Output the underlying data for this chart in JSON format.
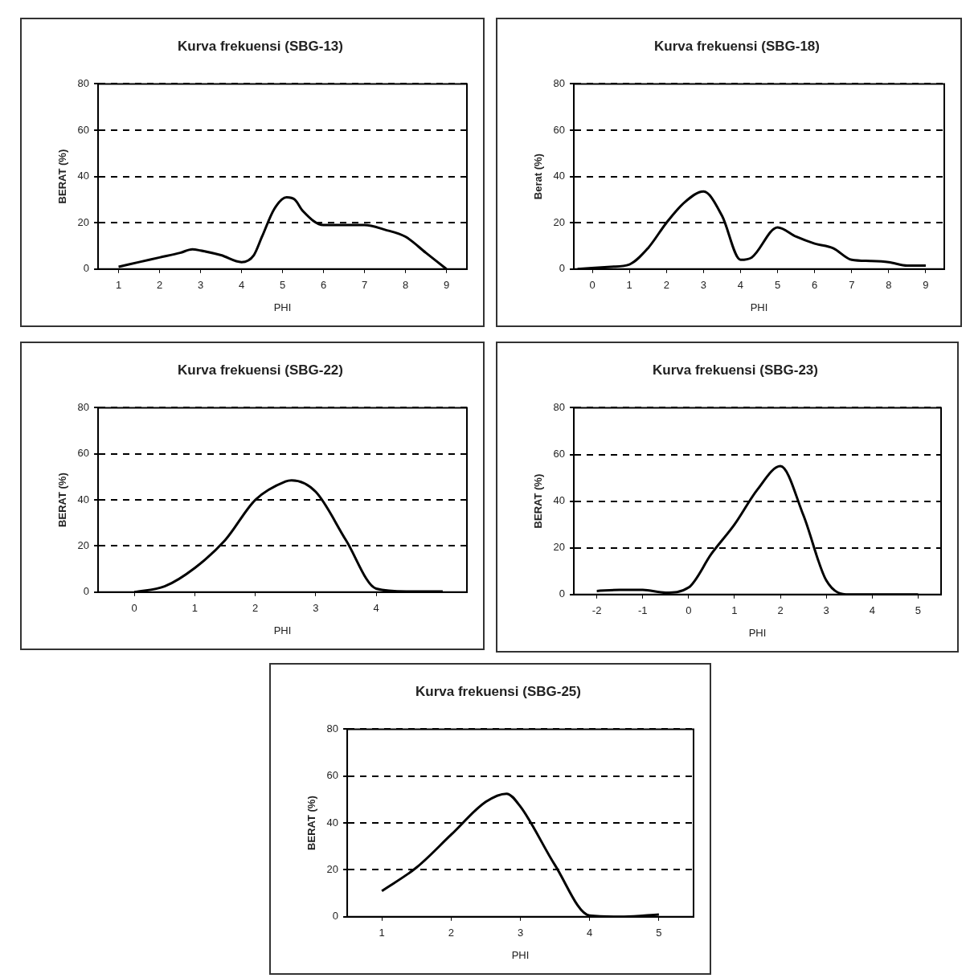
{
  "chart_data": [
    {
      "type": "line",
      "title": "Kurva frekuensi (SBG-13)",
      "xlabel": "PHI",
      "ylabel": "BERAT (%)",
      "x": [
        1,
        1.5,
        2,
        2.5,
        2.8,
        3,
        3.5,
        4,
        4.3,
        4.5,
        4.8,
        5.1,
        5.3,
        5.5,
        6,
        6.5,
        7,
        7.5,
        8,
        8.5,
        9
      ],
      "series": [
        {
          "color": "#000000",
          "values": [
            1,
            3,
            5,
            7,
            8.5,
            8,
            6,
            3,
            6,
            14,
            26,
            31,
            30,
            25,
            19,
            19,
            19,
            17,
            14,
            7,
            0
          ]
        }
      ],
      "xlim": [
        0.5,
        9.5
      ],
      "xticks": [
        1,
        2,
        3,
        4,
        5,
        6,
        7,
        8,
        9
      ],
      "ylim": [
        0,
        80
      ],
      "yticks": [
        0,
        20,
        40,
        60,
        80
      ],
      "grid": "y",
      "marker": "none",
      "line_style": "solid"
    },
    {
      "type": "line",
      "title": "Kurva frekuensi (SBG-18)",
      "xlabel": "PHI",
      "ylabel": "Berat (%)",
      "x": [
        -0.4,
        0.5,
        1,
        1.5,
        2,
        2.5,
        3,
        3.5,
        4,
        4.3,
        5,
        5.5,
        6,
        6.5,
        7,
        7.5,
        8,
        8.5,
        9
      ],
      "series": [
        {
          "color": "#000000",
          "values": [
            0,
            1,
            2,
            9,
            20,
            29,
            33.5,
            23,
            4,
            5,
            18,
            14,
            11,
            9,
            4,
            3.5,
            3,
            1.5,
            1.5
          ]
        }
      ],
      "xlim": [
        -0.5,
        9.5
      ],
      "xticks": [
        0,
        1,
        2,
        3,
        4,
        5,
        6,
        7,
        8,
        9
      ],
      "ylim": [
        0,
        80
      ],
      "yticks": [
        0,
        20,
        40,
        60,
        80
      ],
      "grid": "y",
      "marker": "none",
      "line_style": "solid"
    },
    {
      "type": "line",
      "title": "Kurva frekuensi (SBG-22)",
      "xlabel": "PHI",
      "ylabel": "BERAT (%)",
      "x": [
        0,
        0.5,
        1,
        1.5,
        2,
        2.5,
        2.6,
        3,
        3.5,
        4,
        4.5,
        5.1
      ],
      "series": [
        {
          "color": "#000000",
          "values": [
            0,
            2.5,
            10.5,
            22.5,
            40,
            48,
            48.5,
            43.5,
            22.5,
            1.5,
            0.3,
            0.3
          ]
        }
      ],
      "xlim": [
        -0.6,
        5.5
      ],
      "xticks": [
        0,
        1,
        2,
        3,
        4
      ],
      "ylim": [
        0,
        80
      ],
      "yticks": [
        0,
        20,
        40,
        60,
        80
      ],
      "grid": "y",
      "marker": "none",
      "line_style": "solid"
    },
    {
      "type": "line",
      "title": "Kurva frekuensi (SBG-23)",
      "xlabel": "PHI",
      "ylabel": "BERAT (%)",
      "x": [
        -2,
        -1.5,
        -1,
        -0.5,
        0,
        0.5,
        1,
        1.5,
        2,
        2.5,
        3,
        3.5,
        4,
        4.5,
        5
      ],
      "series": [
        {
          "color": "#000000",
          "values": [
            1.5,
            2,
            2,
            0.8,
            3,
            17.5,
            30,
            45,
            55,
            34,
            6,
            0,
            0,
            0,
            0
          ]
        }
      ],
      "xlim": [
        -2.5,
        5.5
      ],
      "xticks": [
        -2,
        -1,
        0,
        1,
        2,
        3,
        4,
        5
      ],
      "ylim": [
        0,
        80
      ],
      "yticks": [
        0,
        20,
        40,
        60,
        80
      ],
      "grid": "y",
      "marker": "none",
      "line_style": "solid"
    },
    {
      "type": "line",
      "title": "Kurva frekuensi (SBG-25)",
      "xlabel": "PHI",
      "ylabel": "BERAT (%)",
      "x": [
        1,
        1.5,
        2,
        2.5,
        2.8,
        3,
        3.5,
        4,
        4.5,
        5
      ],
      "series": [
        {
          "color": "#000000",
          "values": [
            11,
            21,
            35,
            49,
            52.5,
            47,
            22,
            0.5,
            0,
            1
          ]
        }
      ],
      "xlim": [
        0.5,
        5.5
      ],
      "xticks": [
        1,
        2,
        3,
        4,
        5
      ],
      "ylim": [
        0,
        80
      ],
      "yticks": [
        0,
        20,
        40,
        60,
        80
      ],
      "grid": "y",
      "marker": "none",
      "line_style": "solid"
    }
  ]
}
